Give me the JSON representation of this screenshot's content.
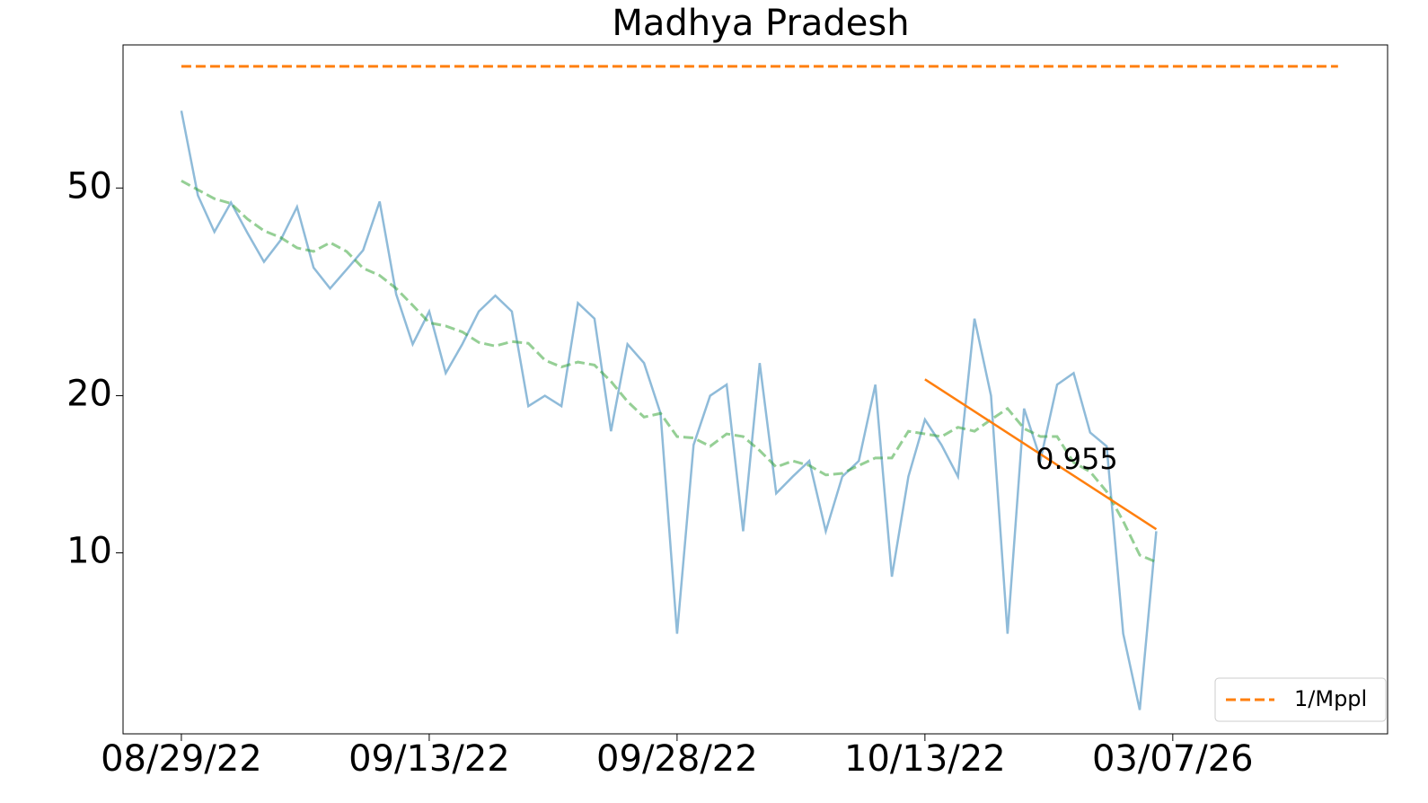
{
  "chart_data": {
    "type": "line",
    "title": "Madhya Pradesh",
    "xlim": [
      -3.53,
      73.0
    ],
    "xticks": [
      {
        "value": 0,
        "label": "08/29/22"
      },
      {
        "value": 15,
        "label": "09/13/22"
      },
      {
        "value": 30,
        "label": "09/28/22"
      },
      {
        "value": 45,
        "label": "10/13/22"
      },
      {
        "value": 60,
        "label": "03/07/26"
      }
    ],
    "ylim": [
      4.5,
      94
    ],
    "yticks": [
      10,
      20,
      50
    ],
    "log_y": true,
    "legend": "lower right",
    "series": [
      {
        "color": "#1f77b4",
        "style": "solid",
        "opacity": 0.5,
        "x": [
          0,
          1,
          2,
          3,
          4,
          5,
          6,
          7,
          8,
          9,
          10,
          11,
          12,
          13,
          14,
          15,
          16,
          17,
          18,
          19,
          20,
          21,
          22,
          23,
          24,
          25,
          26,
          27,
          28,
          29,
          30,
          31,
          32,
          33,
          34,
          35,
          36,
          37,
          38,
          39,
          40,
          41,
          42,
          43,
          44,
          45,
          46,
          47,
          48,
          49,
          50,
          51,
          52,
          53,
          54,
          55,
          56,
          57,
          58,
          59
        ],
        "values": [
          70.3,
          48.4,
          41.2,
          46.9,
          41.0,
          36.1,
          39.7,
          46.0,
          35.2,
          32.1,
          34.9,
          38.0,
          47.1,
          31.3,
          25.1,
          29.0,
          22.1,
          25.1,
          29.0,
          31.1,
          29.0,
          19.1,
          20.0,
          19.1,
          30.1,
          28.1,
          17.1,
          25.1,
          23.1,
          18.5,
          7.0,
          16.1,
          20.0,
          21.0,
          11.0,
          23.1,
          13.0,
          14.0,
          15.0,
          11.0,
          14.0,
          15.0,
          21.0,
          9.0,
          14.0,
          18.0,
          16.1,
          14.0,
          28.1,
          20.0,
          7.0,
          18.9,
          15.1,
          21.0,
          22.1,
          17.0,
          16.0,
          7.0,
          5.0,
          11.0
        ]
      },
      {
        "color": "#2ca02c",
        "style": "dashed",
        "opacity": 0.5,
        "x": [
          0,
          1,
          2,
          3,
          4,
          5,
          6,
          7,
          8,
          9,
          10,
          11,
          12,
          13,
          14,
          15,
          16,
          17,
          18,
          19,
          20,
          21,
          22,
          23,
          24,
          25,
          26,
          27,
          28,
          29,
          30,
          31,
          32,
          33,
          34,
          35,
          36,
          37,
          38,
          39,
          40,
          41,
          42,
          43,
          44,
          45,
          46,
          47,
          48,
          49,
          50,
          51,
          52,
          53,
          54,
          55,
          56,
          57,
          58,
          59
        ],
        "values": [
          51.6,
          49.6,
          47.7,
          46.7,
          43.6,
          41.4,
          40.2,
          38.4,
          37.8,
          39.3,
          37.8,
          35.1,
          34.0,
          32.1,
          29.8,
          27.6,
          27.2,
          26.5,
          25.3,
          24.9,
          25.4,
          25.2,
          23.4,
          22.7,
          23.2,
          22.9,
          21.3,
          19.5,
          18.2,
          18.5,
          16.7,
          16.6,
          16.0,
          16.9,
          16.7,
          15.7,
          14.6,
          15.0,
          14.7,
          14.1,
          14.2,
          14.7,
          15.2,
          15.2,
          17.1,
          16.9,
          16.7,
          17.4,
          17.1,
          18.0,
          18.9,
          17.3,
          16.7,
          16.7,
          14.9,
          14.3,
          13.1,
          11.5,
          9.9,
          9.6
        ]
      },
      {
        "name": "1/Mppl",
        "color": "#ff7f0e",
        "style": "dashed",
        "opacity": 1,
        "x": [
          0,
          70
        ],
        "values": [
          85.5,
          85.5
        ]
      },
      {
        "color": "#ff7f0e",
        "style": "solid",
        "opacity": 1,
        "x": [
          45,
          59
        ],
        "values": [
          21.5,
          11.1
        ]
      }
    ],
    "annotations": [
      {
        "text": "0.955",
        "x": 51.7,
        "y": 15.0,
        "color": "#ff7f0e"
      }
    ]
  }
}
